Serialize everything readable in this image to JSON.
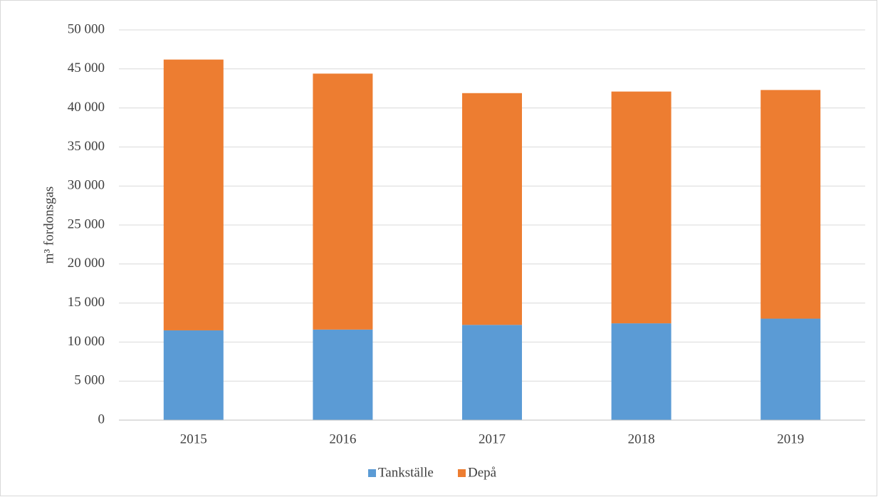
{
  "chart_data": {
    "type": "stacked_bar",
    "y_label": "m³ fordonsgas",
    "categories": [
      "2015",
      "2016",
      "2017",
      "2018",
      "2019"
    ],
    "series": [
      {
        "name": "Tankställe",
        "color": "#5b9bd5",
        "values": [
          11500,
          11600,
          12200,
          12400,
          13000
        ]
      },
      {
        "name": "Depå",
        "color": "#ed7d31",
        "values": [
          34700,
          32800,
          29700,
          29700,
          29300
        ]
      }
    ],
    "ylim": [
      0,
      50000
    ],
    "yticks": [
      0,
      {
        "value": 5000,
        "label": "5 000"
      },
      {
        "value": 10000,
        "label": "10 000"
      },
      {
        "value": 15000,
        "label": "15 000"
      },
      {
        "value": 20000,
        "label": "20 000"
      },
      {
        "value": 25000,
        "label": "25 000"
      },
      {
        "value": 30000,
        "label": "30 000"
      },
      {
        "value": 35000,
        "label": "35 000"
      },
      {
        "value": 40000,
        "label": "40 000"
      },
      {
        "value": 45000,
        "label": "45 000"
      },
      {
        "value": 50000,
        "label": "50 000"
      }
    ],
    "grid": true,
    "legend": "bottom"
  }
}
